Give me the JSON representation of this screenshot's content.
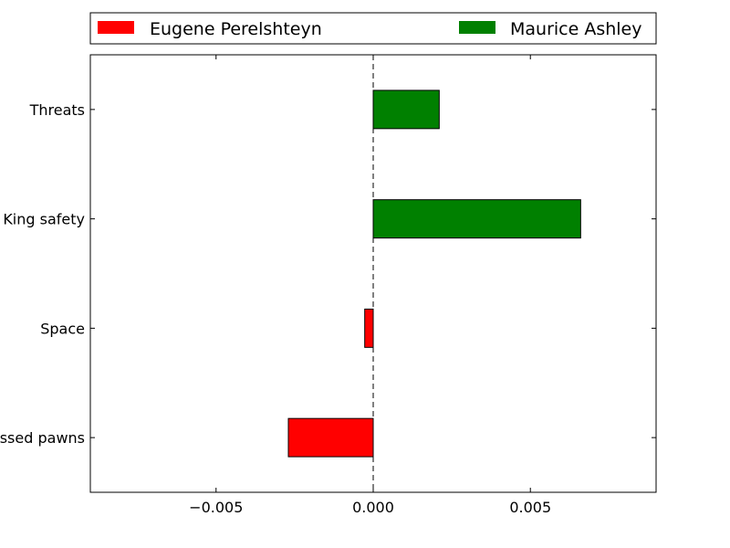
{
  "chart_data": {
    "type": "bar",
    "orientation": "horizontal",
    "categories": [
      "Threats",
      "King safety",
      "Space",
      "Passed pawns"
    ],
    "values": [
      0.0021,
      0.0066,
      -0.00027,
      -0.0027
    ],
    "series": [
      {
        "name": "Eugene Perelshteyn",
        "color": "#ff0000"
      },
      {
        "name": "Maurice Ashley",
        "color": "#008000"
      }
    ],
    "negative_series": 0,
    "positive_series": 1,
    "xlim": [
      -0.009,
      0.009
    ],
    "xticks": [
      -0.005,
      0.0,
      0.005
    ],
    "xtick_labels": [
      "−0.005",
      "0.000",
      "0.005"
    ],
    "zero_line": "dashed",
    "legend_placement": "top",
    "grid": false
  }
}
